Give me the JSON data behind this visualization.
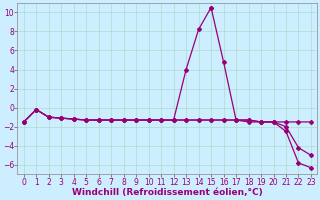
{
  "xlabel": "Windchill (Refroidissement éolien,°C)",
  "background_color": "#cceeff",
  "line_color": "#990077",
  "grid_color": "#aaddcc",
  "xlim": [
    -0.5,
    23.5
  ],
  "ylim": [
    -7,
    11
  ],
  "xticks": [
    0,
    1,
    2,
    3,
    4,
    5,
    6,
    7,
    8,
    9,
    10,
    11,
    12,
    13,
    14,
    15,
    16,
    17,
    18,
    19,
    20,
    21,
    22,
    23
  ],
  "yticks": [
    -6,
    -4,
    -2,
    0,
    2,
    4,
    6,
    8,
    10
  ],
  "curve1_x": [
    0,
    1,
    2,
    3,
    4,
    5,
    6,
    7,
    8,
    9,
    10,
    11,
    12,
    13,
    14,
    15,
    15,
    16,
    17,
    18,
    19,
    20,
    21,
    22,
    23
  ],
  "curve1_y": [
    -1.5,
    -0.2,
    -1.0,
    -1.1,
    -1.2,
    -1.3,
    -1.3,
    -1.3,
    -1.3,
    -1.3,
    -1.3,
    -1.3,
    -1.3,
    4.0,
    8.2,
    10.5,
    10.5,
    4.8,
    -1.3,
    -1.5,
    -1.5,
    -1.5,
    -1.5,
    -1.5,
    -1.5
  ],
  "curve2_x": [
    0,
    1,
    2,
    3,
    4,
    5,
    6,
    7,
    8,
    9,
    10,
    11,
    12,
    13,
    14,
    15,
    16,
    17,
    18,
    19,
    20,
    21,
    22,
    23
  ],
  "curve2_y": [
    -1.5,
    -0.2,
    -1.0,
    -1.1,
    -1.2,
    -1.3,
    -1.3,
    -1.3,
    -1.3,
    -1.3,
    -1.3,
    -1.3,
    -1.3,
    -1.3,
    -1.3,
    -1.3,
    -1.3,
    -1.3,
    -1.3,
    -1.5,
    -1.5,
    -2.5,
    -5.8,
    -6.3
  ],
  "curve3_x": [
    0,
    1,
    2,
    3,
    4,
    5,
    6,
    7,
    8,
    9,
    10,
    11,
    12,
    13,
    14,
    15,
    16,
    17,
    18,
    19,
    20,
    21,
    22,
    23
  ],
  "curve3_y": [
    -1.5,
    -0.2,
    -1.0,
    -1.1,
    -1.2,
    -1.3,
    -1.3,
    -1.3,
    -1.3,
    -1.3,
    -1.3,
    -1.3,
    -1.3,
    -1.3,
    -1.3,
    -1.3,
    -1.3,
    -1.3,
    -1.3,
    -1.5,
    -1.5,
    -2.0,
    -4.2,
    -5.0
  ],
  "marker": "D",
  "markersize": 2.0,
  "linewidth": 0.9,
  "xlabel_fontsize": 6.5,
  "tick_fontsize": 5.5
}
